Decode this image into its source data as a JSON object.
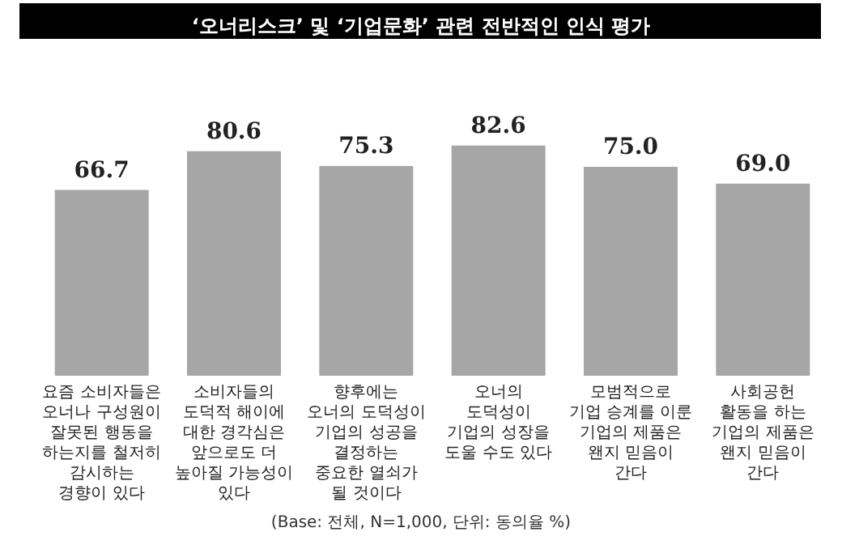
{
  "chart_data": {
    "type": "bar",
    "title": "‘오너리스크’ 및 ‘기업문화’ 관련 전반적인 인식 평가",
    "categories": [
      "요즘 소비자들은\n오너나 구성원이\n잘못된 행동을\n하는지를 철저히\n감시하는\n경향이 있다",
      "소비자들의\n도덕적 해이에\n대한 경각심은\n앞으로도 더\n높아질 가능성이\n있다",
      "향후에는\n오너의 도덕성이\n기업의 성공을\n결정하는\n중요한 열쇠가\n될 것이다",
      "오너의\n도덕성이\n기업의 성장을\n도울 수도 있다",
      "모범적으로\n기업 승계를 이룬\n기업의 제품은\n왠지 믿음이\n간다",
      "사회공헌\n활동을 하는\n기업의 제품은\n왠지 믿음이\n간다"
    ],
    "values": [
      66.7,
      80.6,
      75.3,
      82.6,
      75.0,
      69.0
    ],
    "value_labels": [
      "66.7",
      "80.6",
      "75.3",
      "82.6",
      "75.0",
      "69.0"
    ],
    "color": "#a6a6a6",
    "annotations": [
      "(Base: 전체, N=1,000, 단위: 동의율 %)"
    ]
  }
}
